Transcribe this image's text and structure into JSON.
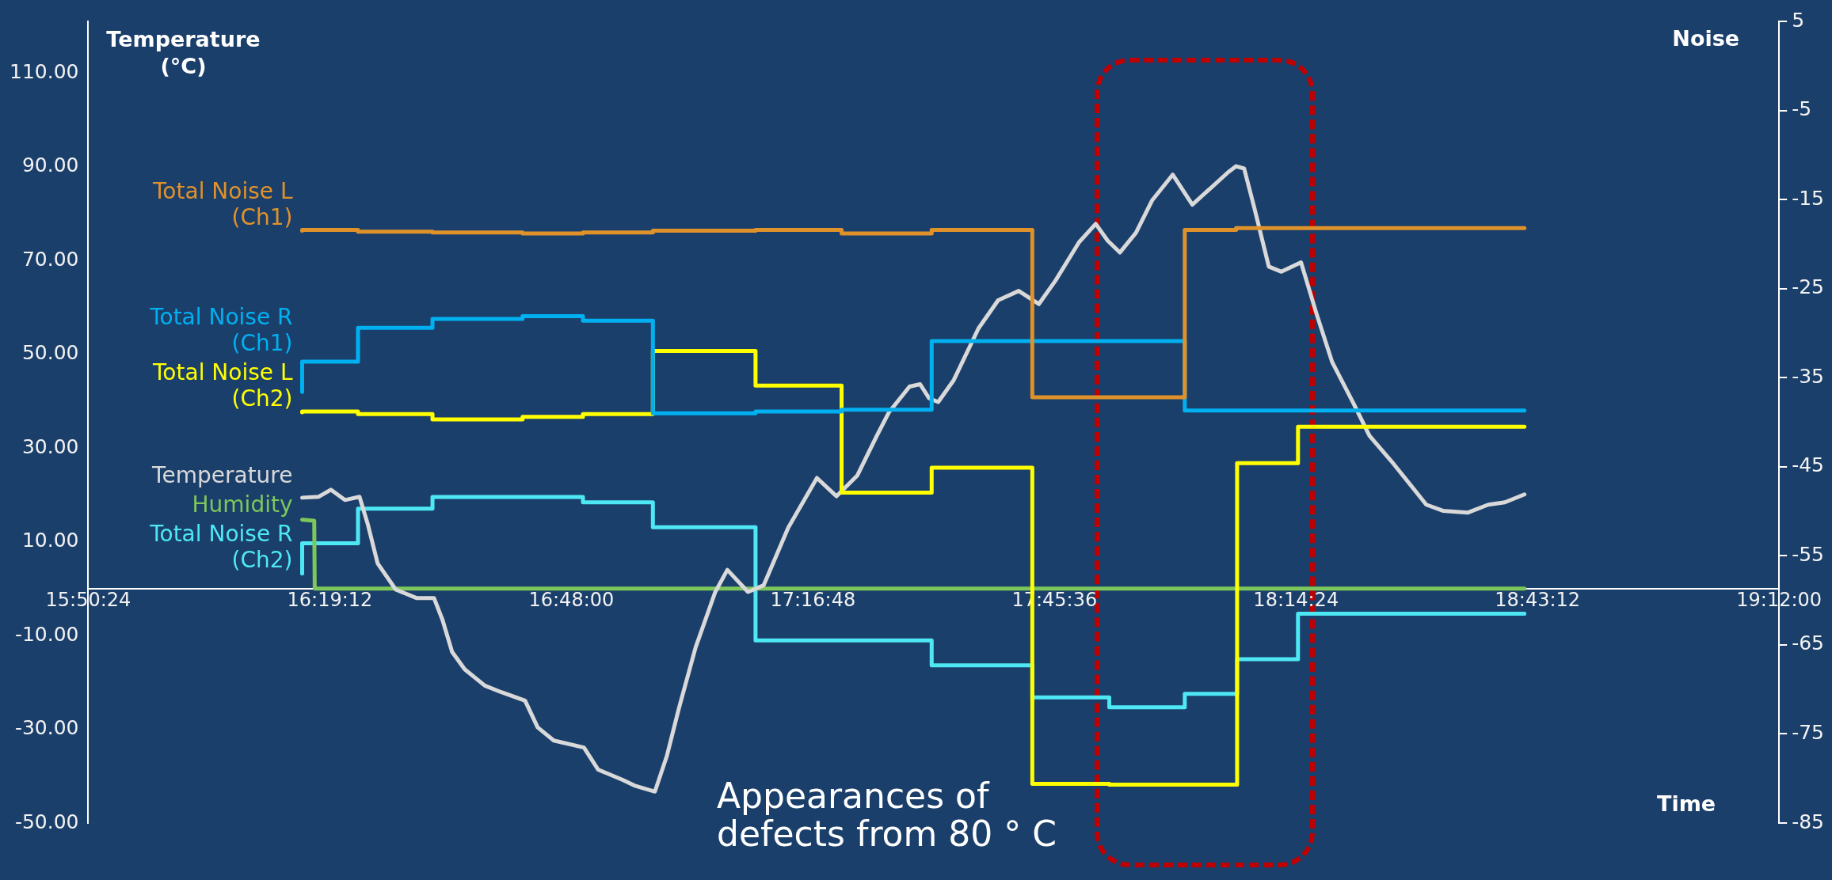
{
  "chart_data": {
    "type": "line",
    "ylabel": "Temperature (°C)",
    "y2label": "Noise",
    "xlabel": "Time",
    "annotations": [
      "Appearances of defects from 80 ° C"
    ],
    "xlim": [
      15.84,
      19.2
    ],
    "xticks": [
      {
        "value": 15.84,
        "label": "15:50:24"
      },
      {
        "value": 16.32,
        "label": "16:19:12"
      },
      {
        "value": 16.8,
        "label": "16:48:00"
      },
      {
        "value": 17.28,
        "label": "17:16:48"
      },
      {
        "value": 17.76,
        "label": "17:45:36"
      },
      {
        "value": 18.24,
        "label": "18:14:24"
      },
      {
        "value": 18.72,
        "label": "18:43:12"
      },
      {
        "value": 19.2,
        "label": "19:12:00"
      }
    ],
    "ylim": [
      -50,
      121
    ],
    "yticks": [
      {
        "value": -50,
        "label": "-50.00"
      },
      {
        "value": -30,
        "label": "-30.00"
      },
      {
        "value": -10,
        "label": "-10.00"
      },
      {
        "value": 10,
        "label": "10.00"
      },
      {
        "value": 30,
        "label": "30.00"
      },
      {
        "value": 50,
        "label": "50.00"
      },
      {
        "value": 70,
        "label": "70.00"
      },
      {
        "value": 90,
        "label": "90.00"
      },
      {
        "value": 110,
        "label": "110.00"
      }
    ],
    "y2lim": [
      -85,
      5
    ],
    "y2ticks": [
      -85,
      -75,
      -65,
      -55,
      -45,
      -35,
      -25,
      -15,
      -5,
      5
    ],
    "legend": false,
    "marker": "none",
    "line_style": "solid",
    "series": [
      {
        "name": "Total Noise L (Ch1)",
        "type": "step",
        "axis": "y2",
        "color": "#e0922a",
        "x": [
          16.265,
          16.376,
          16.524,
          16.703,
          16.823,
          16.962,
          17.166,
          17.337,
          17.516,
          17.716,
          18.019,
          18.121,
          18.246,
          18.694
        ],
        "values": [
          -18.5,
          -18.4,
          -18.6,
          -18.7,
          -18.8,
          -18.7,
          -18.5,
          -18.4,
          -18.8,
          -18.4,
          -37.2,
          -18.4,
          -18.2,
          -18.2
        ]
      },
      {
        "name": "Total Noise R (Ch1)",
        "type": "step",
        "axis": "y2",
        "color": "#00b0f0",
        "x": [
          16.265,
          16.376,
          16.524,
          16.703,
          16.823,
          16.962,
          17.166,
          17.337,
          17.516,
          18.019,
          18.121,
          18.694
        ],
        "values": [
          -36.6,
          -33.2,
          -29.4,
          -28.4,
          -28.1,
          -28.6,
          -39.0,
          -38.8,
          -38.6,
          -30.9,
          -38.7,
          -38.7
        ]
      },
      {
        "name": "Total Noise L (Ch2)",
        "type": "step",
        "axis": "y2",
        "color": "#ffff00",
        "x": [
          16.265,
          16.376,
          16.524,
          16.703,
          16.823,
          16.962,
          17.166,
          17.337,
          17.516,
          17.716,
          17.869,
          18.123,
          18.244,
          18.475,
          18.694
        ],
        "values": [
          -38.9,
          -38.8,
          -39.1,
          -39.7,
          -39.4,
          -39.1,
          -32.0,
          -35.9,
          -47.9,
          -45.1,
          -80.6,
          -80.7,
          -44.6,
          -40.5,
          -40.5
        ]
      },
      {
        "name": "Temperature",
        "type": "line",
        "color": "#d9d9d9",
        "x": [
          16.265,
          16.298,
          16.322,
          16.35,
          16.379,
          16.395,
          16.415,
          16.451,
          16.492,
          16.527,
          16.544,
          16.563,
          16.588,
          16.628,
          16.661,
          16.708,
          16.733,
          16.765,
          16.825,
          16.853,
          16.902,
          16.925,
          16.966,
          16.99,
          17.014,
          17.047,
          17.086,
          17.11,
          17.151,
          17.182,
          17.231,
          17.288,
          17.327,
          17.368,
          17.407,
          17.431,
          17.472,
          17.493,
          17.511,
          17.529,
          17.56,
          17.609,
          17.648,
          17.689,
          17.729,
          17.762,
          17.809,
          17.842,
          17.866,
          17.89,
          17.922,
          17.954,
          17.995,
          18.034,
          18.105,
          18.121,
          18.137,
          18.157,
          18.186,
          18.211,
          18.25,
          18.28,
          18.312,
          18.353,
          18.386,
          18.434,
          18.499,
          18.532,
          18.581,
          18.622,
          18.655,
          18.694
        ],
        "values": [
          19.4,
          19.6,
          21.1,
          18.9,
          19.6,
          13.9,
          5.4,
          -0.2,
          -2.0,
          -2.0,
          -6.7,
          -13.5,
          -17.2,
          -20.7,
          -22.1,
          -23.9,
          -29.6,
          -32.4,
          -33.9,
          -38.6,
          -40.8,
          -42.0,
          -43.3,
          -35.6,
          -25.4,
          -12.5,
          -0.7,
          4.0,
          -0.7,
          0.7,
          13.0,
          23.6,
          19.7,
          24.1,
          32.6,
          37.6,
          43.1,
          43.6,
          40.6,
          39.8,
          44.5,
          55.5,
          61.5,
          63.5,
          60.7,
          65.7,
          73.9,
          77.8,
          74.2,
          71.7,
          75.9,
          82.8,
          88.3,
          81.9,
          88.8,
          90.1,
          89.6,
          81.3,
          68.7,
          67.6,
          69.6,
          58.9,
          48.3,
          39.8,
          32.6,
          26.6,
          17.9,
          16.6,
          16.2,
          17.9,
          18.4,
          20.1
        ]
      },
      {
        "name": "Humidity",
        "type": "line",
        "color": "#7dc75b",
        "x": [
          16.265,
          16.289,
          16.29,
          18.694
        ],
        "values": [
          14.7,
          14.5,
          0,
          0
        ]
      },
      {
        "name": "Total Noise R (Ch2)",
        "type": "step",
        "axis": "y2",
        "color": "#4ee8f5",
        "x": [
          16.265,
          16.376,
          16.524,
          16.823,
          16.962,
          17.166,
          17.516,
          17.716,
          17.869,
          18.019,
          18.123,
          18.244,
          18.475,
          18.694
        ],
        "values": [
          -57.0,
          -53.6,
          -49.7,
          -48.4,
          -49.0,
          -51.8,
          -64.5,
          -67.3,
          -70.9,
          -72.0,
          -70.5,
          -66.6,
          -61.5,
          -61.5
        ]
      }
    ]
  }
}
